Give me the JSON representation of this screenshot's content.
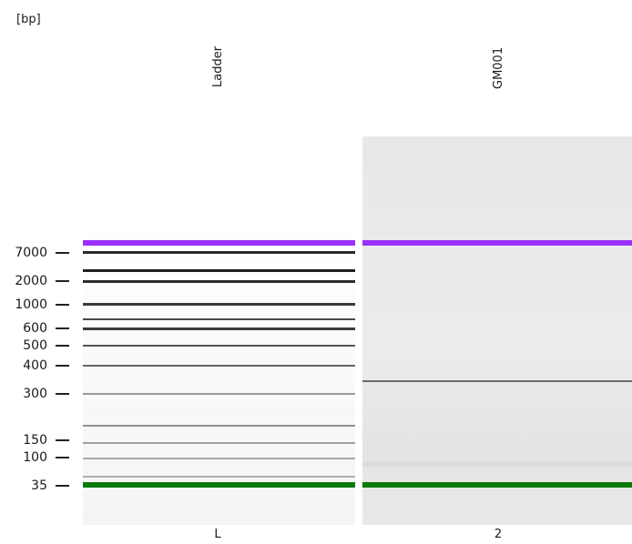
{
  "unit": "[bp]",
  "lanes": [
    {
      "name": "Ladder",
      "number": "L"
    },
    {
      "name": "GM001",
      "number": "2"
    }
  ],
  "size_markers": [
    "7000",
    "2000",
    "1000",
    "600",
    "500",
    "400",
    "300",
    "150",
    "100",
    "35"
  ],
  "colors": {
    "upper_marker": "#9b30ff",
    "lower_marker": "#0a7a0a",
    "ladder_band_dark": "#2a2a2a",
    "ladder_band_light": "#9a9a9a",
    "sample_band": "#6a6a6a"
  }
}
